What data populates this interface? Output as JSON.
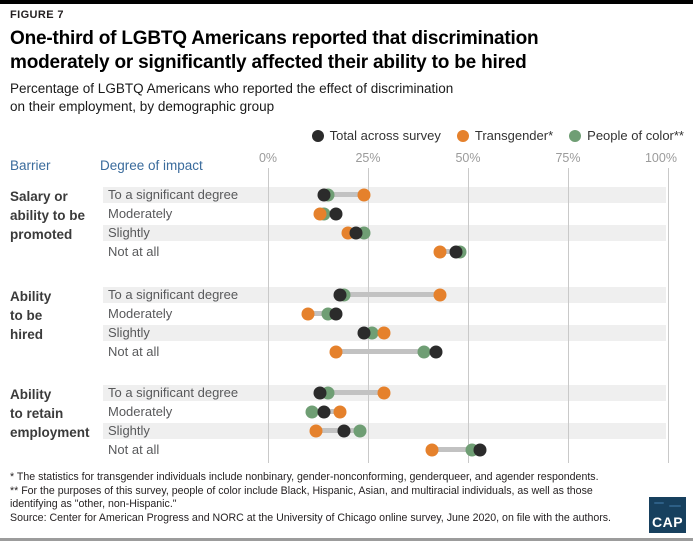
{
  "figure_label": "FIGURE 7",
  "title": "One-third of LGBTQ Americans reported that discrimination\nmoderately or significantly affected their ability to be hired",
  "subtitle": "Percentage of LGBTQ Americans who reported the effect of discrimination\non their employment, by demographic group",
  "column_headers": {
    "barrier": "Barrier",
    "degree_of_impact": "Degree of impact"
  },
  "legend": [
    {
      "label": "Total across survey",
      "color": "#2b2b2b"
    },
    {
      "label": "Transgender*",
      "color": "#e5812c"
    },
    {
      "label": "People of color**",
      "color": "#6f9e74"
    }
  ],
  "chart_data": {
    "type": "scatter",
    "variant": "dumbbell-dot-plot",
    "xlabel": "",
    "ylabel": "",
    "xlim": [
      0,
      100
    ],
    "unit": "percent",
    "axis_ticks": [
      "0%",
      "25%",
      "50%",
      "75%",
      "100%"
    ],
    "grid": "vertical-gridlines-on",
    "legend_position": "top-right",
    "series_names": [
      "Total across survey",
      "Transgender*",
      "People of color**"
    ],
    "groups": [
      {
        "barrier": "Salary or\nability to be\npromoted",
        "rows": [
          {
            "degree": "To a significant degree",
            "total": 14,
            "transgender": 24,
            "people_of_color": 15
          },
          {
            "degree": "Moderately",
            "total": 17,
            "transgender": 13,
            "people_of_color": 14
          },
          {
            "degree": "Slightly",
            "total": 22,
            "transgender": 20,
            "people_of_color": 24
          },
          {
            "degree": "Not at all",
            "total": 47,
            "transgender": 43,
            "people_of_color": 48
          }
        ]
      },
      {
        "barrier": "Ability\nto be\nhired",
        "rows": [
          {
            "degree": "To a significant degree",
            "total": 18,
            "transgender": 43,
            "people_of_color": 19
          },
          {
            "degree": "Moderately",
            "total": 17,
            "transgender": 10,
            "people_of_color": 15
          },
          {
            "degree": "Slightly",
            "total": 24,
            "transgender": 29,
            "people_of_color": 26
          },
          {
            "degree": "Not at all",
            "total": 42,
            "transgender": 17,
            "people_of_color": 39
          }
        ]
      },
      {
        "barrier": "Ability\nto retain\nemployment",
        "rows": [
          {
            "degree": "To a significant degree",
            "total": 13,
            "transgender": 29,
            "people_of_color": 15
          },
          {
            "degree": "Moderately",
            "total": 14,
            "transgender": 18,
            "people_of_color": 11
          },
          {
            "degree": "Slightly",
            "total": 19,
            "transgender": 12,
            "people_of_color": 23
          },
          {
            "degree": "Not at all",
            "total": 53,
            "transgender": 41,
            "people_of_color": 51
          }
        ]
      }
    ]
  },
  "footnotes": [
    "* The statistics for transgender individuals include nonbinary, gender-nonconforming, genderqueer, and agender respondents.",
    "** For the purposes of this survey, people of color include Black, Hispanic, Asian, and multiracial individuals, as well as those\nidentifying as \"other, non-Hispanic.\""
  ],
  "source": "Source: Center for American Progress and NORC at the University of Chicago online survey, June 2020, on file with the authors.",
  "logo": {
    "text": "CAP"
  }
}
